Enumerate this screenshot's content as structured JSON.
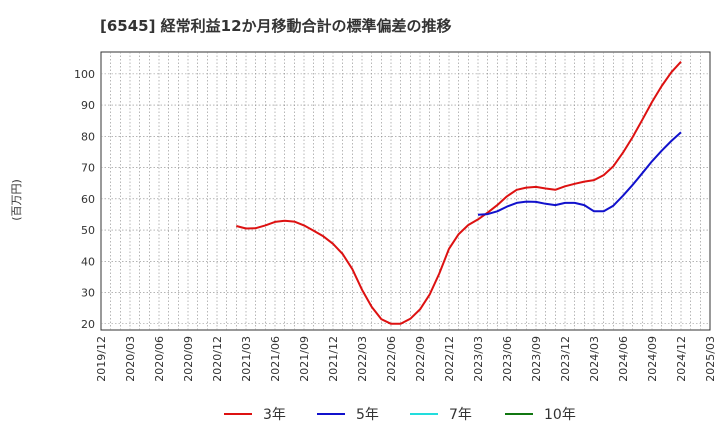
{
  "chart_data": {
    "type": "line",
    "title": "[6545]  経常利益12か月移動合計の標準偏差の推移",
    "ylabel": "(百万円)",
    "xlabel": "",
    "ylim": [
      18,
      107
    ],
    "yticks": [
      20,
      30,
      40,
      50,
      60,
      70,
      80,
      90,
      100
    ],
    "x_start": "2019/12",
    "x_end": "2025/03",
    "xticks": [
      "2019/12",
      "2020/03",
      "2020/06",
      "2020/09",
      "2020/12",
      "2021/03",
      "2021/06",
      "2021/09",
      "2021/12",
      "2022/03",
      "2022/06",
      "2022/09",
      "2022/12",
      "2023/03",
      "2023/06",
      "2023/09",
      "2023/12",
      "2024/03",
      "2024/06",
      "2024/09",
      "2024/12",
      "2025/03"
    ],
    "grid": true,
    "legend_position": "bottom",
    "series": [
      {
        "name": "3年",
        "color": "#dd1111",
        "x": [
          "2021/02",
          "2021/03",
          "2021/04",
          "2021/05",
          "2021/06",
          "2021/07",
          "2021/08",
          "2021/09",
          "2021/10",
          "2021/11",
          "2021/12",
          "2022/01",
          "2022/02",
          "2022/03",
          "2022/04",
          "2022/05",
          "2022/06",
          "2022/07",
          "2022/08",
          "2022/09",
          "2022/10",
          "2022/11",
          "2022/12",
          "2023/01",
          "2023/02",
          "2023/03",
          "2023/04",
          "2023/05",
          "2023/06",
          "2023/07",
          "2023/08",
          "2023/09",
          "2023/10",
          "2023/11",
          "2023/12",
          "2024/01",
          "2024/02",
          "2024/03",
          "2024/04",
          "2024/05",
          "2024/06",
          "2024/07",
          "2024/08",
          "2024/09",
          "2024/10",
          "2024/11",
          "2024/12"
        ],
        "values": [
          51.3,
          50.5,
          50.6,
          51.5,
          52.6,
          53.0,
          52.7,
          51.5,
          49.8,
          48.0,
          45.6,
          42.3,
          37.5,
          30.9,
          25.4,
          21.5,
          20.0,
          20.0,
          21.6,
          24.6,
          29.4,
          36.1,
          44.0,
          48.7,
          51.6,
          53.4,
          55.6,
          58.0,
          60.8,
          62.9,
          63.6,
          63.8,
          63.3,
          62.9,
          64.0,
          64.8,
          65.5,
          66.0,
          67.6,
          70.4,
          74.8,
          79.8,
          85.3,
          91.0,
          96.1,
          100.5,
          103.9
        ]
      },
      {
        "name": "5年",
        "color": "#1111cc",
        "x": [
          "2023/03",
          "2023/04",
          "2023/05",
          "2023/06",
          "2023/07",
          "2023/08",
          "2023/09",
          "2023/10",
          "2023/11",
          "2023/12",
          "2024/01",
          "2024/02",
          "2024/03",
          "2024/04",
          "2024/05",
          "2024/06",
          "2024/07",
          "2024/08",
          "2024/09",
          "2024/10",
          "2024/11",
          "2024/12"
        ],
        "values": [
          54.9,
          55.1,
          56.0,
          57.5,
          58.7,
          59.1,
          59.0,
          58.4,
          58.0,
          58.7,
          58.7,
          58.0,
          56.0,
          56.0,
          57.8,
          61.0,
          64.5,
          68.2,
          72.0,
          75.4,
          78.5,
          81.3
        ]
      },
      {
        "name": "7年",
        "color": "#22dddd",
        "x": [],
        "values": []
      },
      {
        "name": "10年",
        "color": "#117711",
        "x": [],
        "values": []
      }
    ]
  }
}
